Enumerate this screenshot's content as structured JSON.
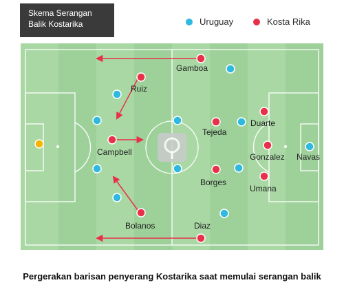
{
  "title": {
    "line1": "Skema Serangan",
    "line2": "Balik Kostarika"
  },
  "legend": [
    {
      "label": "Uruguay",
      "color": "#2fb9e0"
    },
    {
      "label": "Kosta Rika",
      "color": "#e8304a"
    }
  ],
  "colors": {
    "pitch": "#9ed19a",
    "stripe": "#a9d8a4",
    "lines": "#ffffff",
    "arrow": "#e8304a",
    "goalkeeper": "#f5b400",
    "watermark": "#c9cbcc"
  },
  "players": {
    "costa_rica": [
      "Gamboa",
      "Ruiz",
      "Campbell",
      "Bolanos",
      "Diaz",
      "Tejeda",
      "Duarte",
      "Gonzalez",
      "Borges",
      "Umana"
    ],
    "uruguay": [
      "Navas"
    ]
  },
  "caption": "Pergerakan barisan penyerang Kostarika saat memulai serangan balik"
}
